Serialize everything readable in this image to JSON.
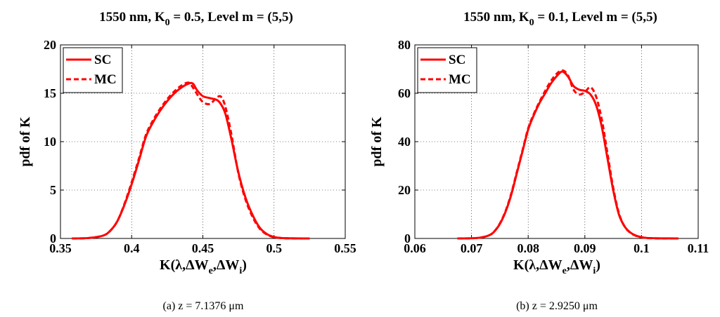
{
  "chart_data": [
    {
      "type": "line",
      "title": "1550 nm, K",
      "title_sub": "0",
      "title_tail": " = 0.5, Level m = (5,5)",
      "xlabel_parts": [
        "K(λ,ΔW",
        "e",
        ",ΔW",
        "i",
        ")"
      ],
      "ylabel": "pdf of K",
      "xlim": [
        0.35,
        0.55
      ],
      "ylim": [
        0,
        20
      ],
      "xticks": [
        "0.35",
        "0.4",
        "0.45",
        "0.5",
        "0.55"
      ],
      "xtick_values": [
        0.35,
        0.4,
        0.45,
        0.5,
        0.55
      ],
      "yticks": [
        "0",
        "5",
        "10",
        "15",
        "20"
      ],
      "ytick_values": [
        0,
        5,
        10,
        15,
        20
      ],
      "grid": true,
      "legend_position": "top-left",
      "caption": "(a) z = 7.1376 μm",
      "series": [
        {
          "name": "SC",
          "style": "solid",
          "color": "#ff0000",
          "x": [
            0.358,
            0.37,
            0.38,
            0.385,
            0.39,
            0.395,
            0.4,
            0.405,
            0.41,
            0.415,
            0.42,
            0.425,
            0.43,
            0.435,
            0.44,
            0.443,
            0.446,
            0.45,
            0.455,
            0.46,
            0.463,
            0.466,
            0.47,
            0.475,
            0.48,
            0.485,
            0.49,
            0.495,
            0.5,
            0.505,
            0.51,
            0.52,
            0.525
          ],
          "y": [
            0,
            0.05,
            0.3,
            0.8,
            1.8,
            3.5,
            5.6,
            8.0,
            10.5,
            12.0,
            13.2,
            14.2,
            15.0,
            15.6,
            16.0,
            16.0,
            15.3,
            14.7,
            14.5,
            14.3,
            13.8,
            12.8,
            10.3,
            6.8,
            4.2,
            2.4,
            1.1,
            0.45,
            0.15,
            0.05,
            0.02,
            0,
            0
          ]
        },
        {
          "name": "MC",
          "style": "dashed",
          "color": "#ff0000",
          "x": [
            0.358,
            0.37,
            0.38,
            0.385,
            0.39,
            0.395,
            0.4,
            0.405,
            0.41,
            0.415,
            0.42,
            0.425,
            0.43,
            0.435,
            0.44,
            0.443,
            0.446,
            0.45,
            0.455,
            0.46,
            0.463,
            0.466,
            0.47,
            0.475,
            0.48,
            0.485,
            0.49,
            0.495,
            0.5,
            0.505,
            0.51,
            0.52,
            0.525
          ],
          "y": [
            0,
            0.05,
            0.3,
            0.8,
            1.8,
            3.6,
            5.8,
            8.2,
            10.7,
            12.2,
            13.4,
            14.4,
            15.2,
            15.8,
            16.1,
            15.6,
            14.9,
            14.1,
            13.9,
            14.6,
            14.6,
            13.5,
            10.8,
            6.7,
            4.0,
            2.2,
            1.0,
            0.4,
            0.12,
            0.04,
            0.01,
            0,
            0
          ]
        }
      ]
    },
    {
      "type": "line",
      "title": "1550 nm, K",
      "title_sub": "0",
      "title_tail": " = 0.1, Level m = (5,5)",
      "xlabel_parts": [
        "K(λ,ΔW",
        "e",
        ",ΔW",
        "i",
        ")"
      ],
      "ylabel": "pdf of K",
      "xlim": [
        0.06,
        0.11
      ],
      "ylim": [
        0,
        80
      ],
      "xticks": [
        "0.06",
        "0.07",
        "0.08",
        "0.09",
        "0.1",
        "0.11"
      ],
      "xtick_values": [
        0.06,
        0.07,
        0.08,
        0.09,
        0.1,
        0.11
      ],
      "yticks": [
        "0",
        "20",
        "40",
        "60",
        "80"
      ],
      "ytick_values": [
        0,
        20,
        40,
        60,
        80
      ],
      "grid": true,
      "legend_position": "top-left",
      "caption": "(b) z = 2.9250 μm",
      "series": [
        {
          "name": "SC",
          "style": "solid",
          "color": "#ff0000",
          "x": [
            0.0675,
            0.071,
            0.073,
            0.074,
            0.075,
            0.076,
            0.077,
            0.078,
            0.079,
            0.08,
            0.081,
            0.082,
            0.083,
            0.084,
            0.085,
            0.086,
            0.087,
            0.088,
            0.089,
            0.09,
            0.091,
            0.092,
            0.093,
            0.094,
            0.095,
            0.096,
            0.097,
            0.098,
            0.099,
            0.1,
            0.101,
            0.103,
            0.1065
          ],
          "y": [
            0,
            0.2,
            1.2,
            2.8,
            6.0,
            11.0,
            18.0,
            27.0,
            36.0,
            45.0,
            51.0,
            56.0,
            60.0,
            64.0,
            67.0,
            69.0,
            67.0,
            63.0,
            61.5,
            61.0,
            59.5,
            55.0,
            46.0,
            33.0,
            20.0,
            10.0,
            5.0,
            2.5,
            1.2,
            0.5,
            0.2,
            0.05,
            0
          ]
        },
        {
          "name": "MC",
          "style": "dashed",
          "color": "#ff0000",
          "x": [
            0.0675,
            0.071,
            0.073,
            0.074,
            0.075,
            0.076,
            0.077,
            0.078,
            0.079,
            0.08,
            0.081,
            0.082,
            0.083,
            0.084,
            0.085,
            0.086,
            0.087,
            0.088,
            0.089,
            0.09,
            0.091,
            0.092,
            0.093,
            0.094,
            0.095,
            0.096,
            0.097,
            0.098,
            0.099,
            0.1,
            0.101,
            0.103,
            0.1065
          ],
          "y": [
            0,
            0.2,
            1.2,
            2.9,
            6.2,
            11.3,
            18.5,
            27.5,
            36.5,
            45.5,
            51.5,
            56.5,
            61.0,
            65.0,
            68.0,
            69.5,
            67.5,
            61.5,
            59.5,
            60.5,
            62.5,
            58.5,
            49.0,
            35.0,
            21.0,
            10.5,
            5.0,
            2.4,
            1.1,
            0.45,
            0.15,
            0.03,
            0
          ]
        }
      ]
    }
  ]
}
